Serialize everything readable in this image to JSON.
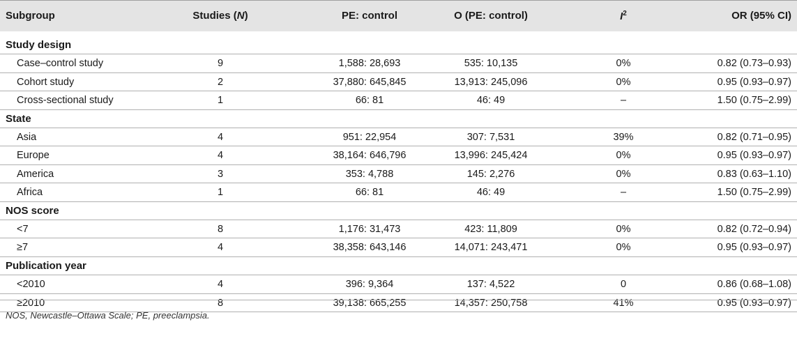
{
  "headers": {
    "subgroup": "Subgroup",
    "studies": "Studies (N)",
    "pe_control": "PE: control",
    "o_pe_control": "O (PE: control)",
    "i2": "I²",
    "or": "OR (95% CI)"
  },
  "sections": [
    {
      "title": "Study design",
      "rows": [
        {
          "subgroup": "Case–control study",
          "studies": "9",
          "pe_control": "1,588: 28,693",
          "o": "535: 10,135",
          "i2": "0%",
          "or": "0.82 (0.73–0.93)"
        },
        {
          "subgroup": "Cohort study",
          "studies": "2",
          "pe_control": "37,880: 645,845",
          "o": "13,913: 245,096",
          "i2": "0%",
          "or": "0.95 (0.93–0.97)"
        },
        {
          "subgroup": "Cross-sectional study",
          "studies": "1",
          "pe_control": "66: 81",
          "o": "46: 49",
          "i2": "–",
          "or": "1.50 (0.75–2.99)"
        }
      ]
    },
    {
      "title": "State",
      "rows": [
        {
          "subgroup": "Asia",
          "studies": "4",
          "pe_control": "951: 22,954",
          "o": "307: 7,531",
          "i2": "39%",
          "or": "0.82 (0.71–0.95)"
        },
        {
          "subgroup": "Europe",
          "studies": "4",
          "pe_control": "38,164: 646,796",
          "o": "13,996: 245,424",
          "i2": "0%",
          "or": "0.95 (0.93–0.97)"
        },
        {
          "subgroup": "America",
          "studies": "3",
          "pe_control": "353: 4,788",
          "o": "145: 2,276",
          "i2": "0%",
          "or": "0.83 (0.63–1.10)"
        },
        {
          "subgroup": "Africa",
          "studies": "1",
          "pe_control": "66: 81",
          "o": "46: 49",
          "i2": "–",
          "or": "1.50 (0.75–2.99)"
        }
      ]
    },
    {
      "title": "NOS score",
      "rows": [
        {
          "subgroup": "<7",
          "studies": "8",
          "pe_control": "1,176: 31,473",
          "o": "423: 11,809",
          "i2": "0%",
          "or": "0.82 (0.72–0.94)"
        },
        {
          "subgroup": "≥7",
          "studies": "4",
          "pe_control": "38,358: 643,146",
          "o": "14,071: 243,471",
          "i2": "0%",
          "or": "0.95 (0.93–0.97)"
        }
      ]
    },
    {
      "title": "Publication year",
      "rows": [
        {
          "subgroup": "<2010",
          "studies": "4",
          "pe_control": "396: 9,364",
          "o": "137: 4,522",
          "i2": "0",
          "or": "0.86 (0.68–1.08)"
        },
        {
          "subgroup": "≥2010",
          "studies": "8",
          "pe_control": "39,138: 665,255",
          "o": "14,357: 250,758",
          "i2": "41%",
          "or": "0.95 (0.93–0.97)"
        }
      ]
    }
  ],
  "footnote": "NOS, Newcastle–Ottawa Scale; PE, preeclampsia."
}
